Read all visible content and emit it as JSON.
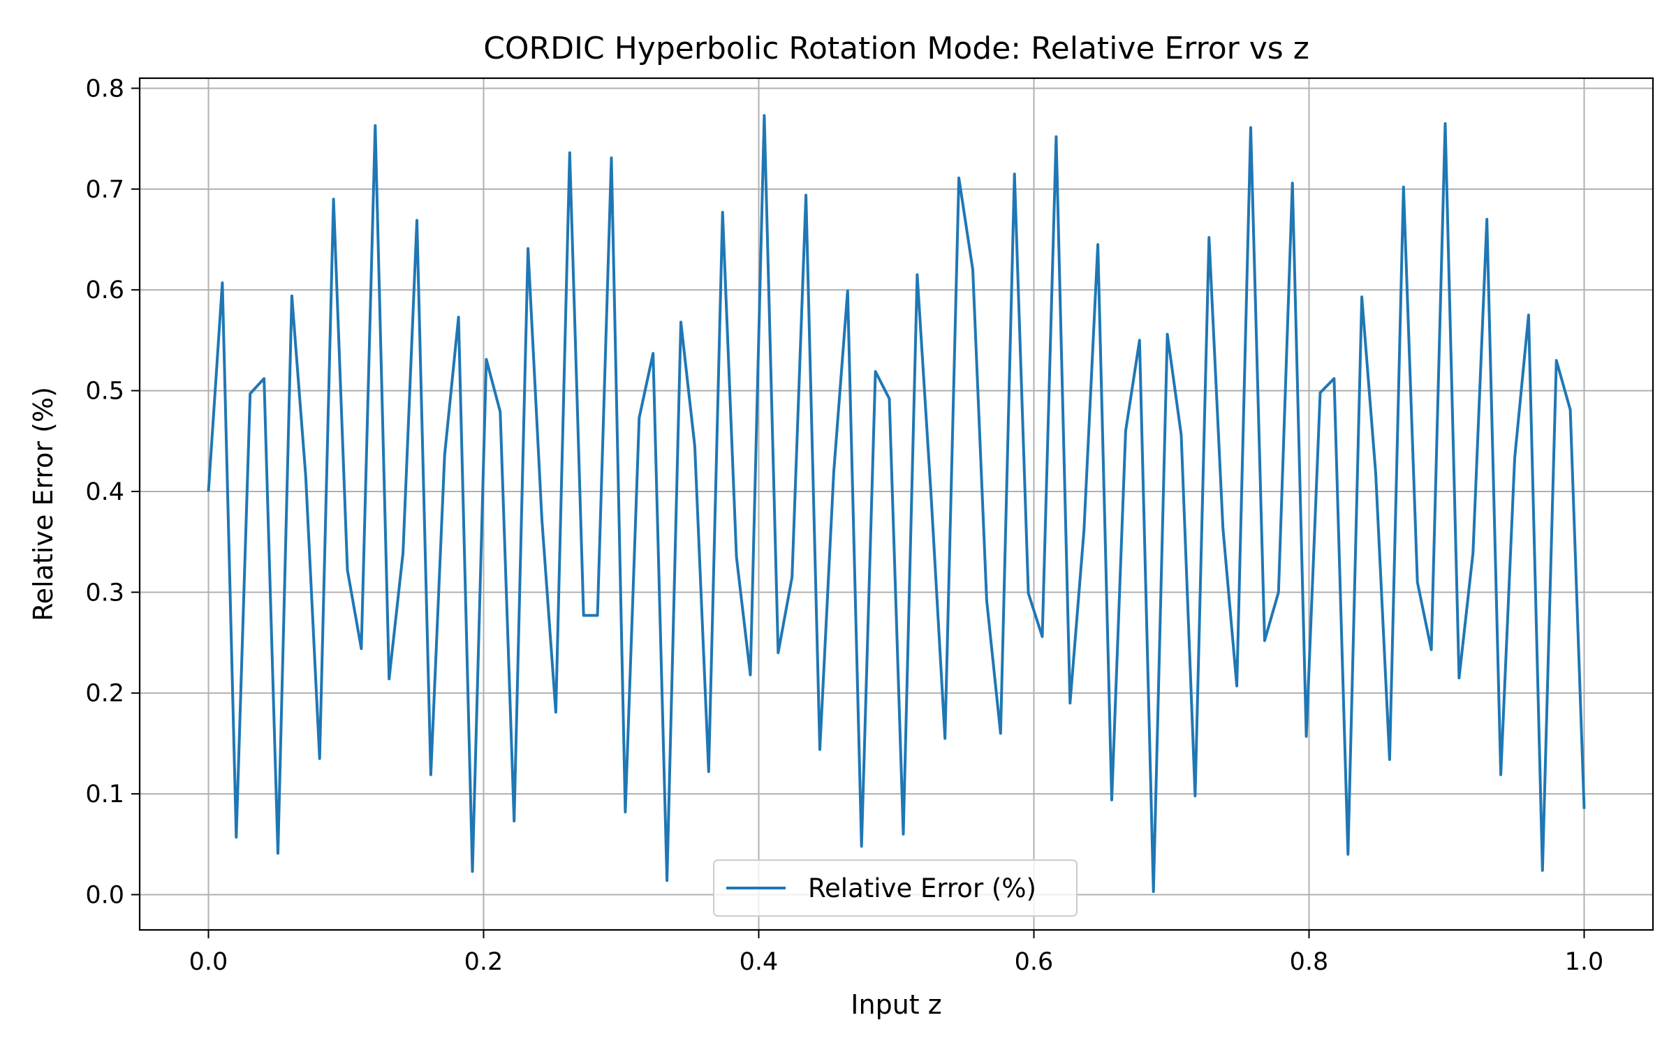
{
  "chart_data": {
    "type": "line",
    "title": "CORDIC Hyperbolic Rotation Mode: Relative Error vs z",
    "xlabel": "Input z",
    "ylabel": "Relative Error (%)",
    "xlim": [
      -0.05,
      1.05
    ],
    "ylim": [
      -0.035,
      0.81
    ],
    "xticks": [
      0.0,
      0.2,
      0.4,
      0.6,
      0.8,
      1.0
    ],
    "xtick_labels": [
      "0.0",
      "0.2",
      "0.4",
      "0.6",
      "0.8",
      "1.0"
    ],
    "yticks": [
      0.0,
      0.1,
      0.2,
      0.3,
      0.4,
      0.5,
      0.6,
      0.7,
      0.8
    ],
    "ytick_labels": [
      "0.0",
      "0.1",
      "0.2",
      "0.3",
      "0.4",
      "0.5",
      "0.6",
      "0.7",
      "0.8"
    ],
    "grid": true,
    "legend_position": "bottom-center",
    "series": [
      {
        "name": "Relative Error (%)",
        "color": "#1f77b4",
        "x": [
          0.0,
          0.0101,
          0.0202,
          0.0303,
          0.0404,
          0.0505,
          0.0606,
          0.0707,
          0.0808,
          0.0909,
          0.101,
          0.1111,
          0.1212,
          0.1313,
          0.1414,
          0.1515,
          0.1616,
          0.1717,
          0.1818,
          0.1919,
          0.202,
          0.2121,
          0.2222,
          0.2323,
          0.2424,
          0.2525,
          0.2626,
          0.2727,
          0.2828,
          0.2929,
          0.303,
          0.3131,
          0.3232,
          0.3333,
          0.3434,
          0.3535,
          0.3636,
          0.3737,
          0.3838,
          0.3939,
          0.404,
          0.4141,
          0.4242,
          0.4343,
          0.4444,
          0.4545,
          0.4646,
          0.4747,
          0.4848,
          0.4949,
          0.5051,
          0.5152,
          0.5253,
          0.5354,
          0.5455,
          0.5556,
          0.5657,
          0.5758,
          0.5859,
          0.596,
          0.6061,
          0.6162,
          0.6263,
          0.6364,
          0.6465,
          0.6566,
          0.6667,
          0.6768,
          0.6869,
          0.697,
          0.7071,
          0.7172,
          0.7273,
          0.7374,
          0.7475,
          0.7576,
          0.7677,
          0.7778,
          0.7879,
          0.798,
          0.8081,
          0.8182,
          0.8283,
          0.8384,
          0.8485,
          0.8586,
          0.8687,
          0.8788,
          0.8889,
          0.899,
          0.9091,
          0.9192,
          0.9293,
          0.9394,
          0.9495,
          0.9596,
          0.9697,
          0.9798,
          0.9899,
          1.0
        ],
        "y": [
          0.4,
          0.607,
          0.057,
          0.497,
          0.512,
          0.041,
          0.594,
          0.415,
          0.135,
          0.69,
          0.322,
          0.244,
          0.763,
          0.214,
          0.339,
          0.669,
          0.119,
          0.436,
          0.573,
          0.023,
          0.531,
          0.479,
          0.073,
          0.641,
          0.372,
          0.181,
          0.736,
          0.277,
          0.277,
          0.731,
          0.082,
          0.473,
          0.537,
          0.014,
          0.568,
          0.445,
          0.122,
          0.677,
          0.335,
          0.218,
          0.773,
          0.24,
          0.315,
          0.694,
          0.144,
          0.419,
          0.599,
          0.048,
          0.519,
          0.492,
          0.06,
          0.615,
          0.396,
          0.155,
          0.711,
          0.62,
          0.292,
          0.16,
          0.715,
          0.299,
          0.256,
          0.752,
          0.19,
          0.361,
          0.645,
          0.094,
          0.46,
          0.55,
          0.003,
          0.556,
          0.456,
          0.098,
          0.652,
          0.364,
          0.207,
          0.761,
          0.252,
          0.3,
          0.706,
          0.157,
          0.498,
          0.512,
          0.04,
          0.593,
          0.418,
          0.134,
          0.702,
          0.31,
          0.243,
          0.765,
          0.215,
          0.339,
          0.67,
          0.119,
          0.433,
          0.575,
          0.024,
          0.53,
          0.481,
          0.085
        ]
      }
    ]
  }
}
